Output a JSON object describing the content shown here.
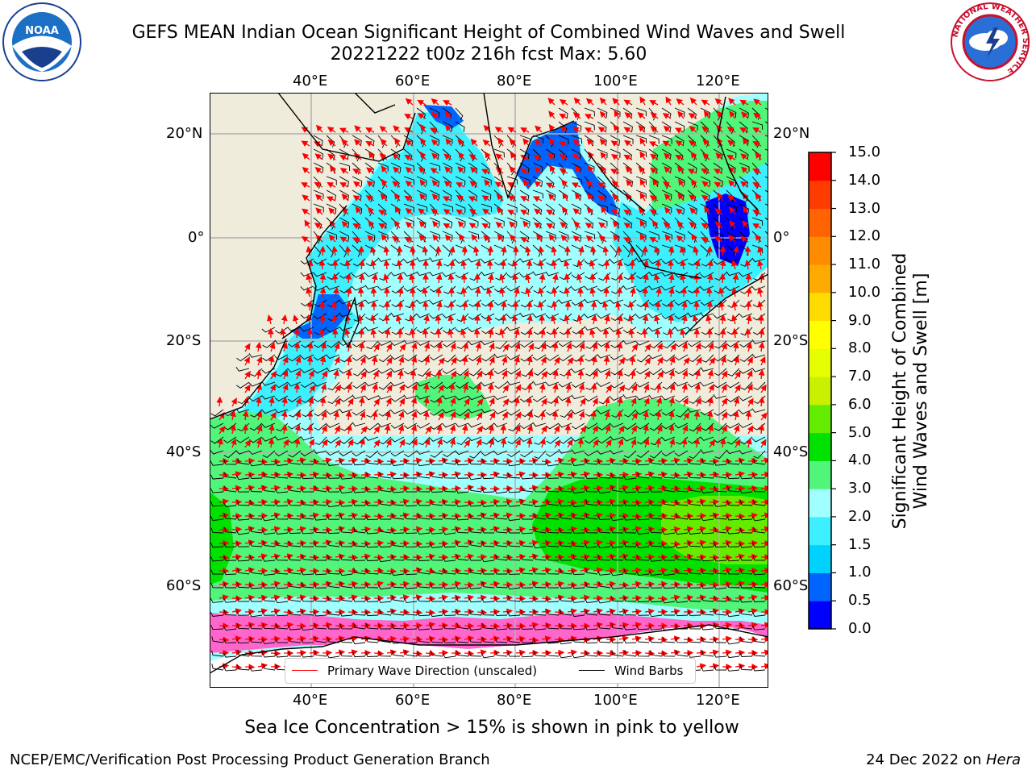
{
  "title": {
    "line1": "GEFS MEAN Indian Ocean Significant Height of Combined Wind Waves and Swell",
    "line2": "20221222 t00z 216h fcst   Max: 5.60"
  },
  "logos": {
    "left": "NOAA",
    "right_ring": "NATIONAL WEATHER SERVICE"
  },
  "axes": {
    "lon_ticks": [
      "40°E",
      "60°E",
      "80°E",
      "100°E",
      "120°E"
    ],
    "lat_ticks": [
      "20°N",
      "0°",
      "20°S",
      "40°S",
      "60°S"
    ]
  },
  "colorbar": {
    "ticks": [
      "0.0",
      "0.5",
      "1.0",
      "1.5",
      "2.0",
      "3.0",
      "4.0",
      "5.0",
      "6.0",
      "7.0",
      "8.0",
      "9.0",
      "10.0",
      "11.0",
      "12.0",
      "13.0",
      "14.0",
      "15.0"
    ],
    "colors": [
      "#0000ff",
      "#0064ff",
      "#00d2ff",
      "#3cf0ff",
      "#a0ffff",
      "#50f57a",
      "#00e100",
      "#64ec00",
      "#c8f000",
      "#e6ff00",
      "#ffff00",
      "#ffdc00",
      "#ffaa00",
      "#ff8c00",
      "#ff6400",
      "#ff3c00",
      "#ff0000"
    ],
    "label_line1": "Significant Height of Combined",
    "label_line2": "Wind Waves and Swell [m]"
  },
  "legend": {
    "wave_label": "Primary Wave Direction (unscaled)",
    "wind_label": "Wind Barbs",
    "wave_color": "#ff0000",
    "wind_color": "#000000"
  },
  "map_colors": {
    "land": "#efecdc",
    "ocean_1_5": "#3cf0ff",
    "ocean_2": "#a0ffff",
    "ocean_3": "#50f57a",
    "ocean_4": "#00e100",
    "ocean_5": "#64ec00",
    "shallow_1": "#0064ff",
    "shallow_0": "#0000ff",
    "ice": "#ff66cc"
  },
  "note": "Sea Ice Concentration > 15% is shown in pink to yellow",
  "footer": {
    "left": "NCEP/EMC/Verification Post Processing Product Generation Branch",
    "date": "24 Dec 2022 on ",
    "machine": "Hera"
  }
}
